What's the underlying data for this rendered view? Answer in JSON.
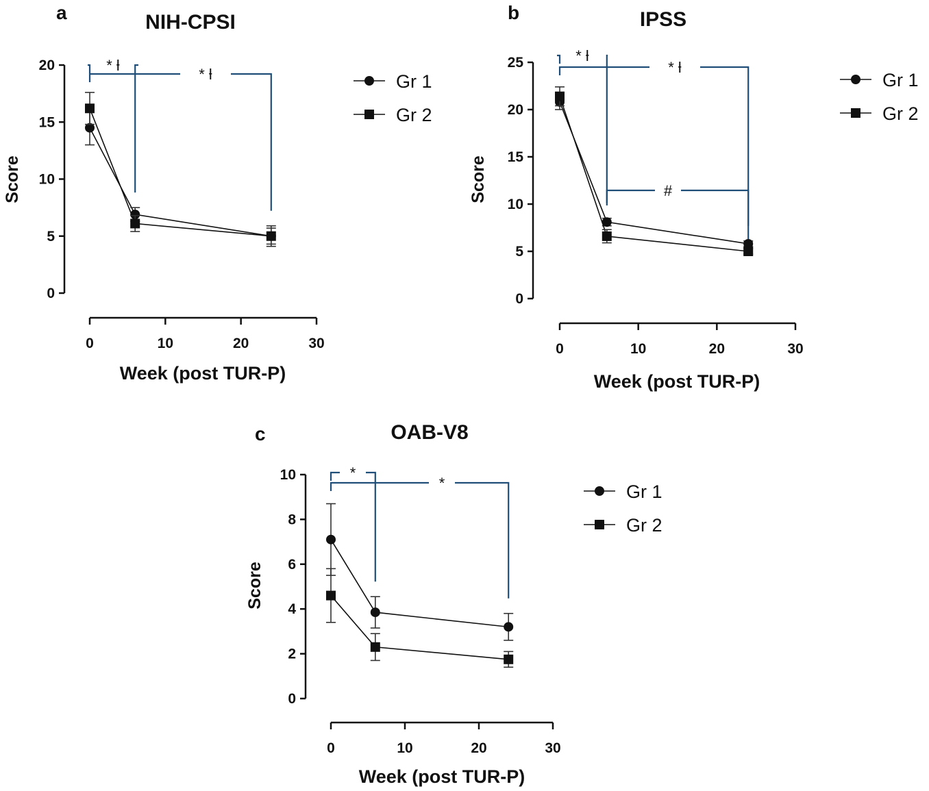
{
  "colors": {
    "bracket": "#1f4e79",
    "ink": "#111111",
    "background": "#ffffff"
  },
  "chart_data": [
    {
      "panel": "a",
      "type": "line",
      "title": "NIH-CPSI",
      "xlabel": "Week (post TUR-P)",
      "ylabel": "Score",
      "xlim": [
        0,
        30
      ],
      "ylim": [
        0,
        20
      ],
      "xticks": [
        0,
        10,
        20,
        30
      ],
      "yticks": [
        0,
        5,
        10,
        15,
        20
      ],
      "x": [
        0,
        6,
        24
      ],
      "series": [
        {
          "name": "Gr 1",
          "marker": "circle",
          "values": [
            14.5,
            6.9,
            5.0
          ],
          "err": [
            1.5,
            0.6,
            0.7
          ]
        },
        {
          "name": "Gr 2",
          "marker": "square",
          "values": [
            16.2,
            6.1,
            5.0
          ],
          "err": [
            1.4,
            0.7,
            0.9
          ]
        }
      ],
      "significance": [
        {
          "label": "* ƚ",
          "from": 0,
          "to": 6,
          "level": "upper"
        },
        {
          "label": "* ƚ",
          "from": 0,
          "to": 24,
          "level": "lower"
        }
      ]
    },
    {
      "panel": "b",
      "type": "line",
      "title": "IPSS",
      "xlabel": "Week (post TUR-P)",
      "ylabel": "Score",
      "xlim": [
        0,
        30
      ],
      "ylim": [
        0,
        25
      ],
      "xticks": [
        0,
        10,
        20,
        30
      ],
      "yticks": [
        0,
        5,
        10,
        15,
        20,
        25
      ],
      "x": [
        0,
        6,
        24
      ],
      "series": [
        {
          "name": "Gr 1",
          "marker": "circle",
          "values": [
            20.8,
            8.1,
            5.8
          ],
          "err": [
            0.8,
            0.4,
            0.3
          ]
        },
        {
          "name": "Gr 2",
          "marker": "square",
          "values": [
            21.4,
            6.6,
            5.0
          ],
          "err": [
            1.0,
            0.7,
            0.3
          ]
        }
      ],
      "significance": [
        {
          "label": "* ƚ",
          "from": 0,
          "to": 6,
          "level": "upper"
        },
        {
          "label": "* ƚ",
          "from": 0,
          "to": 24,
          "level": "lower"
        },
        {
          "label": "#",
          "from": 6,
          "to": 24,
          "level": "mid"
        }
      ]
    },
    {
      "panel": "c",
      "type": "line",
      "title": "OAB-V8",
      "xlabel": "Week (post TUR-P)",
      "ylabel": "Score",
      "xlim": [
        0,
        30
      ],
      "ylim": [
        0,
        10
      ],
      "xticks": [
        0,
        10,
        20,
        30
      ],
      "yticks": [
        0,
        2,
        4,
        6,
        8,
        10
      ],
      "x": [
        0,
        6,
        24
      ],
      "series": [
        {
          "name": "Gr 1",
          "marker": "circle",
          "values": [
            7.1,
            3.85,
            3.2
          ],
          "err": [
            1.6,
            0.7,
            0.6
          ]
        },
        {
          "name": "Gr 2",
          "marker": "square",
          "values": [
            4.6,
            2.3,
            1.75
          ],
          "err": [
            1.2,
            0.6,
            0.35
          ]
        }
      ],
      "significance": [
        {
          "label": "*",
          "from": 0,
          "to": 6,
          "level": "upper"
        },
        {
          "label": "*",
          "from": 0,
          "to": 24,
          "level": "lower"
        }
      ]
    }
  ]
}
